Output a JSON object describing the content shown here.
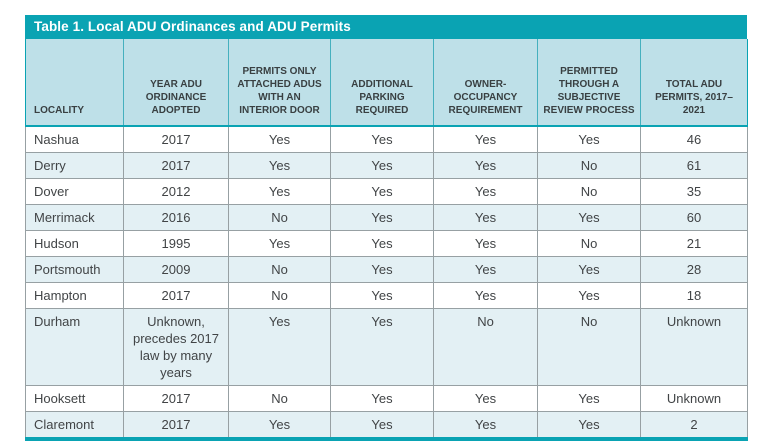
{
  "colors": {
    "teal_accent": "#0aa3b3",
    "header_background": "#bee0e8",
    "row_alt_background": "#e3f0f4",
    "row_background": "#ffffff",
    "grid_border": "#97a0a3",
    "title_text": "#ffffff",
    "header_text": "#394042",
    "body_text": "#414446"
  },
  "table": {
    "title": "Table 1. Local ADU Ordinances and ADU Permits",
    "columns": [
      {
        "label": "LOCALITY"
      },
      {
        "label": "YEAR ADU ORDINANCE ADOPTED"
      },
      {
        "label": "PERMITS ONLY ATTACHED ADUs WITH AN INTERIOR DOOR"
      },
      {
        "label": "ADDITIONAL PARKING REQUIRED"
      },
      {
        "label": "OWNER-OCCUPANCY REQUIREMENT"
      },
      {
        "label": "PERMITTED THROUGH A SUBJECTIVE REVIEW PROCESS"
      },
      {
        "label": "TOTAL ADU PERMITS, 2017–2021"
      }
    ],
    "rows": [
      [
        "Nashua",
        "2017",
        "Yes",
        "Yes",
        "Yes",
        "Yes",
        "46"
      ],
      [
        "Derry",
        "2017",
        "Yes",
        "Yes",
        "Yes",
        "No",
        "61"
      ],
      [
        "Dover",
        "2012",
        "Yes",
        "Yes",
        "Yes",
        "No",
        "35"
      ],
      [
        "Merrimack",
        "2016",
        "No",
        "Yes",
        "Yes",
        "Yes",
        "60"
      ],
      [
        "Hudson",
        "1995",
        "Yes",
        "Yes",
        "Yes",
        "No",
        "21"
      ],
      [
        "Portsmouth",
        "2009",
        "No",
        "Yes",
        "Yes",
        "Yes",
        "28"
      ],
      [
        "Hampton",
        "2017",
        "No",
        "Yes",
        "Yes",
        "Yes",
        "18"
      ],
      [
        "Durham",
        "Unknown, precedes 2017 law by many years",
        "Yes",
        "Yes",
        "No",
        "No",
        "Unknown"
      ],
      [
        "Hooksett",
        "2017",
        "No",
        "Yes",
        "Yes",
        "Yes",
        "Unknown"
      ],
      [
        "Claremont",
        "2017",
        "Yes",
        "Yes",
        "Yes",
        "Yes",
        "2"
      ]
    ]
  }
}
